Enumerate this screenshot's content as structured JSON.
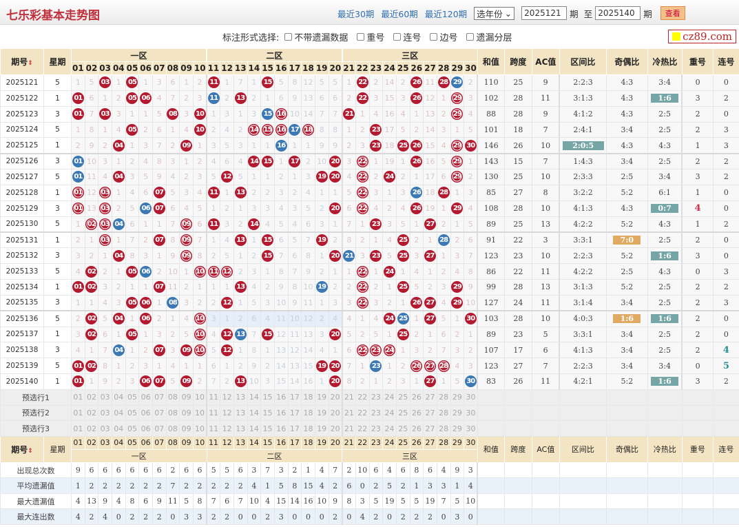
{
  "header": {
    "title": "七乐彩基本走势图",
    "links": [
      "最近30期",
      "最近60期",
      "最近120期"
    ],
    "year_select": "选年份",
    "from_issue": "2025121",
    "issue_unit": "期",
    "to_label": "至",
    "to_issue": "2025140",
    "view_button": "查看",
    "watermark": "cz89.com"
  },
  "options": {
    "label": "标注形式选择:",
    "items": [
      "不带遗漏数据",
      "重号",
      "连号",
      "边号",
      "遗漏分层"
    ]
  },
  "columns": {
    "issue": "期号",
    "sort_icon": "⇕",
    "weekday": "星期",
    "zones": [
      "一区",
      "二区",
      "三区"
    ],
    "numbers": [
      "01",
      "02",
      "03",
      "04",
      "05",
      "06",
      "07",
      "08",
      "09",
      "10",
      "11",
      "12",
      "13",
      "14",
      "15",
      "16",
      "17",
      "18",
      "19",
      "20",
      "21",
      "22",
      "23",
      "24",
      "25",
      "26",
      "27",
      "28",
      "29",
      "30"
    ],
    "stats": [
      "和值",
      "跨度",
      "AC值",
      "区间比",
      "奇偶比",
      "冷热比",
      "重号",
      "连号"
    ]
  },
  "colors": {
    "red_ball": "#b3192f",
    "blue_ball": "#3b78b4",
    "teal_tag": "#76a5a6",
    "orange_tag": "#e1aa63",
    "header_bg": "#f3e4c4",
    "title": "#c0303a"
  },
  "legend": {
    "R": "red ball = drawn number",
    "B": "blue ball = special number",
    "O": "ringed ball = repeat/consecutive"
  },
  "rows": [
    {
      "issue": "2025121",
      "weekday": "5",
      "cells": "1 5 R03 1 R05 1 3 6 1 2 R11 1 7 1 R15 5 8 12 5 5 1 R22 2 14 2 R26 11 R28 B29 2",
      "stats": [
        "110",
        "25",
        "9",
        "2:2:3",
        "4:3",
        "3:4",
        "0",
        "0"
      ]
    },
    {
      "issue": "2025122",
      "weekday": "1",
      "cells": "R01 6 1 2 R05 R06 4 7 2 3 B11 2 R13 2 1 6 9 13 6 6 2 R22 3 15 3 R26 12 1 O29 3",
      "stats": [
        "102",
        "28",
        "11",
        "3:1:3",
        "4:3",
        "T1:6",
        "3",
        "2"
      ]
    },
    {
      "issue": "2025123",
      "weekday": "3",
      "cells": "R01 7 R03 3 1 1 5 R08 3 R10 1 3 1 3 B15 O16 10 14 7 7 R21 1 4 16 4 1 13 2 O29 4",
      "stats": [
        "88",
        "28",
        "9",
        "4:1:2",
        "4:3",
        "2:5",
        "2",
        "0"
      ]
    },
    {
      "issue": "2025124",
      "weekday": "5",
      "cells": "1 8 1 4 R05 2 6 1 4 R10 2 4 2 O14 O15 O16 B17 O18 8 8 1 2 R23 17 5 2 14 3 1 5",
      "stats": [
        "101",
        "18",
        "7",
        "2:4:1",
        "3:4",
        "2:5",
        "2",
        "3"
      ]
    },
    {
      "issue": "2025125",
      "weekday": "1",
      "cells": "2 9 2 R04 1 3 7 2 R09 1 3 5 3 1 1 B16 1 1 9 9 2 3 R23 18 R25 R26 15 4 O29 R30",
      "stats": [
        "146",
        "26",
        "10",
        "T2:0:5",
        "4:3",
        "4:3",
        "1",
        "3"
      ]
    },
    {
      "issue": "2025126",
      "weekday": "3",
      "cells": "B01 10 3 1 2 4 8 3 1 2 4 6 4 R14 R15 1 R17 2 10 R20 3 O22 1 19 1 R26 16 5 O29 1",
      "stats": [
        "143",
        "15",
        "7",
        "1:4:3",
        "3:4",
        "2:5",
        "2",
        "2"
      ]
    },
    {
      "issue": "2025127",
      "weekday": "5",
      "cells": "B01 11 4 R04 3 5 9 4 2 3 5 R12 5 1 1 2 1 3 R19 R20 4 O22 2 R24 2 1 17 6 O29 2",
      "stats": [
        "130",
        "25",
        "10",
        "2:3:3",
        "2:5",
        "3:4",
        "3",
        "2"
      ]
    },
    {
      "issue": "2025128",
      "weekday": "1",
      "cells": "O01 12 O03 1 4 6 R07 5 3 4 R11 1 R13 2 2 3 2 4 1 1 5 O22 3 1 3 B26 18 R28 1 3",
      "stats": [
        "85",
        "27",
        "8",
        "3:2:2",
        "5:2",
        "6:1",
        "1",
        "0"
      ]
    },
    {
      "issue": "2025129",
      "weekday": "3",
      "cells": "O01 13 O03 2 5 B06 R07 6 4 5 1 2 1 3 3 4 3 5 2 R20 6 O22 4 2 4 R26 19 1 R29 4",
      "stats": [
        "108",
        "28",
        "10",
        "4:1:3",
        "4:3",
        "T0:7",
        "R4",
        "0"
      ]
    },
    {
      "issue": "2025130",
      "weekday": "5",
      "cells": "1 O02 O03 B04 6 1 1 7 O09 6 R11 3 2 R14 4 5 4 6 3 1 7 1 R23 3 5 1 R27 2 1 5",
      "stats": [
        "89",
        "25",
        "13",
        "4:2:2",
        "5:2",
        "4:3",
        "1",
        "2"
      ]
    },
    {
      "issue": "2025131",
      "weekday": "1",
      "cells": "2 1 O03 1 7 2 R07 8 O09 7 1 4 R13 1 R15 6 5 7 R19 2 8 2 1 4 R25 2 1 B28 2 6",
      "stats": [
        "91",
        "22",
        "3",
        "3:3:1",
        "Y7:0",
        "2:5",
        "2",
        "0"
      ]
    },
    {
      "issue": "2025132",
      "weekday": "3",
      "cells": "3 2 1 R04 8 3 1 9 O09 8 2 5 1 2 R15 7 6 8 1 R20 B21 3 R23 5 R25 3 R27 1 3 7",
      "stats": [
        "123",
        "23",
        "10",
        "2:2:3",
        "5:2",
        "T1:6",
        "3",
        "0"
      ]
    },
    {
      "issue": "2025133",
      "weekday": "5",
      "cells": "4 R02 2 1 R05 B06 2 10 1 O10 O11 O12 2 3 1 8 7 9 2 1 1 O22 1 R24 1 4 1 2 4 8",
      "stats": [
        "86",
        "22",
        "11",
        "4:2:2",
        "2:5",
        "4:3",
        "0",
        "3"
      ]
    },
    {
      "issue": "2025134",
      "weekday": "1",
      "cells": "R01 R02 3 2 1 1 R07 11 2 1 1 1 R13 4 2 9 8 10 B19 2 2 O22 2 1 R25 5 2 3 R29 9",
      "stats": [
        "99",
        "28",
        "13",
        "3:1:3",
        "5:2",
        "2:5",
        "2",
        "2"
      ]
    },
    {
      "issue": "2025135",
      "weekday": "3",
      "cells": "1 1 4 3 R05 R06 1 B08 3 2 2 R12 1 5 3 10 9 11 1 3 3 O22 3 2 1 R26 R27 4 R29 10",
      "stats": [
        "127",
        "24",
        "11",
        "3:1:4",
        "3:4",
        "2:5",
        "2",
        "3"
      ]
    },
    {
      "issue": "2025136",
      "weekday": "5",
      "cells": "2 R02 5 R04 1 R06 2 1 4 O10 3 1 2 6 4 11 10 12 2 4 4 1 4 R24 B25 1 R27 5 1 R30",
      "stats": [
        "103",
        "28",
        "10",
        "4:0:3",
        "Y1:6",
        "T1:6",
        "2",
        "0"
      ],
      "zone2_empty": true
    },
    {
      "issue": "2025137",
      "weekday": "1",
      "cells": "3 R02 6 1 R05 1 3 2 5 O10 4 R12 B13 7 R15 12 11 13 3 R20 5 2 5 1 R25 2 1 6 2 1",
      "stats": [
        "89",
        "23",
        "5",
        "3:3:1",
        "3:4",
        "2:5",
        "2",
        "0"
      ]
    },
    {
      "issue": "2025138",
      "weekday": "3",
      "cells": "4 1 7 B04 1 2 R07 3 R09 O10 5 R12 1 8 1 13 12 14 4 1 6 O22 O23 O24 1 3 2 7 3 2",
      "stats": [
        "107",
        "17",
        "6",
        "4:1:3",
        "3:4",
        "2:5",
        "2",
        "C4"
      ]
    },
    {
      "issue": "2025139",
      "weekday": "5",
      "cells": "R01 R02 8 1 2 3 1 4 1 1 6 1 2 9 2 14 13 15 R19 R20 7 1 B23 1 2 O26 O27 O28 4 3",
      "stats": [
        "123",
        "27",
        "7",
        "2:2:3",
        "3:4",
        "3:4",
        "0",
        "C5"
      ]
    },
    {
      "issue": "2025140",
      "weekday": "1",
      "cells": "R01 1 9 2 3 R06 R07 5 R09 2 7 2 R13 10 3 15 14 16 1 R20 8 2 1 2 3 1 R27 1 5 B30",
      "stats": [
        "83",
        "26",
        "11",
        "4:2:1",
        "5:2",
        "T1:6",
        "3",
        "2"
      ]
    }
  ],
  "preselect": [
    "预选行1",
    "预选行2",
    "预选行3"
  ],
  "summary": [
    {
      "label": "出现总次数",
      "values": [
        "9",
        "6",
        "6",
        "6",
        "6",
        "6",
        "6",
        "2",
        "6",
        "6",
        "5",
        "5",
        "6",
        "3",
        "7",
        "3",
        "2",
        "1",
        "4",
        "7",
        "2",
        "10",
        "6",
        "4",
        "6",
        "8",
        "6",
        "4",
        "9",
        "3"
      ]
    },
    {
      "label": "平均遗漏值",
      "values": [
        "1",
        "2",
        "2",
        "2",
        "2",
        "2",
        "2",
        "7",
        "2",
        "2",
        "2",
        "2",
        "2",
        "4",
        "1",
        "5",
        "8",
        "15",
        "4",
        "2",
        "6",
        "0",
        "2",
        "5",
        "2",
        "1",
        "3",
        "3",
        "1",
        "4"
      ]
    },
    {
      "label": "最大遗漏值",
      "values": [
        "4",
        "13",
        "9",
        "4",
        "8",
        "6",
        "9",
        "11",
        "5",
        "8",
        "7",
        "6",
        "7",
        "10",
        "4",
        "15",
        "14",
        "16",
        "10",
        "9",
        "8",
        "3",
        "5",
        "19",
        "5",
        "5",
        "19",
        "7",
        "5",
        "10"
      ]
    },
    {
      "label": "最大连出数",
      "values": [
        "4",
        "2",
        "4",
        "0",
        "2",
        "2",
        "2",
        "0",
        "3",
        "3",
        "2",
        "2",
        "0",
        "0",
        "2",
        "3",
        "0",
        "0",
        "0",
        "2",
        "0",
        "4",
        "2",
        "0",
        "2",
        "2",
        "2",
        "0",
        "3",
        "0"
      ]
    }
  ]
}
